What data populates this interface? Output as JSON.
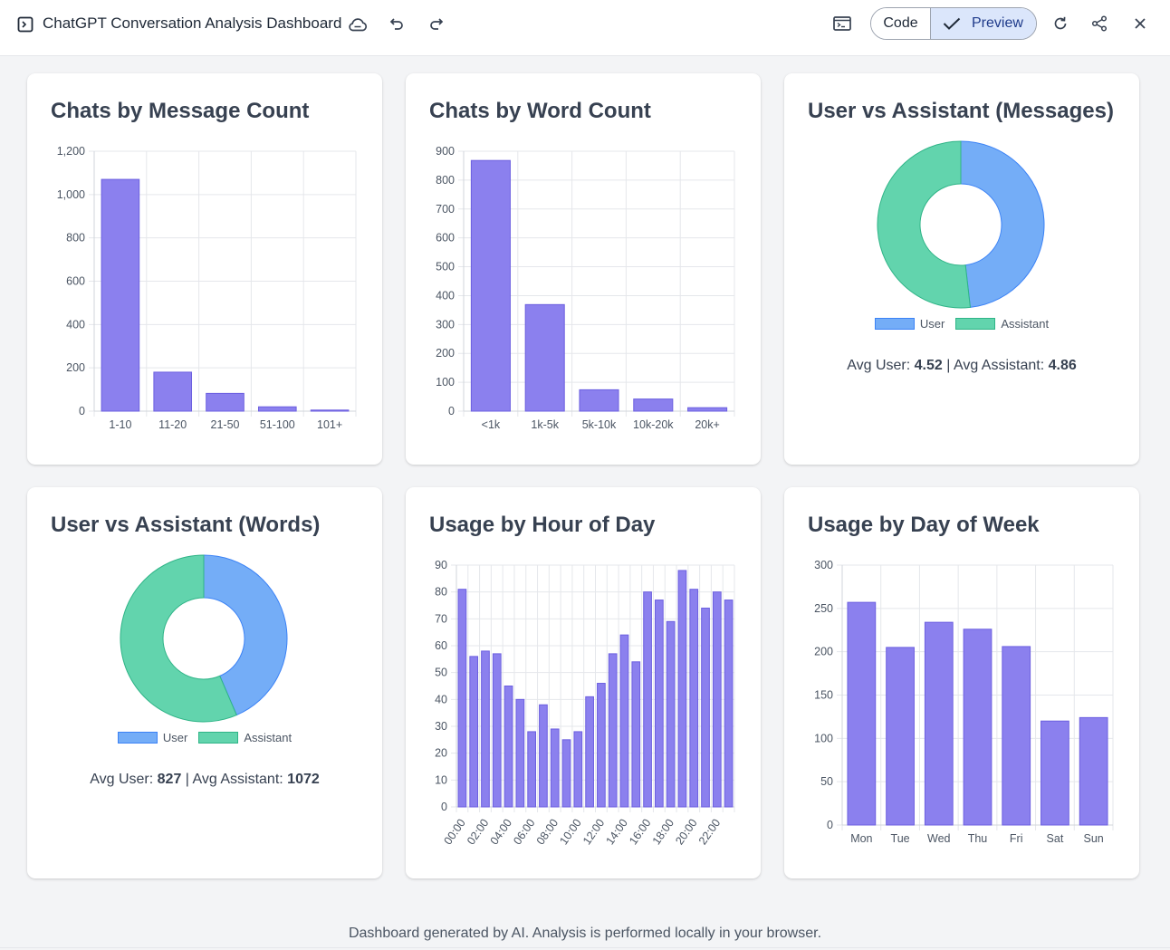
{
  "window": {
    "title": "ChatGPT Conversation Analysis Dashboard"
  },
  "toolbar": {
    "code_label": "Code",
    "preview_label": "Preview",
    "icons": [
      "panel-icon",
      "cloud-save-icon",
      "undo-icon",
      "redo-icon",
      "terminal-icon",
      "refresh-icon",
      "share-icon",
      "close-icon"
    ]
  },
  "colors": {
    "bar_fill": "#8b80ee",
    "bar_stroke": "#6c5fe0",
    "user": "#74adf7",
    "user_stroke": "#3b82f6",
    "assistant": "#62d4ad",
    "assistant_stroke": "#2fb487",
    "preview_bg": "#dbe6fb"
  },
  "cards": {
    "message_count": {
      "title": "Chats by Message Count"
    },
    "word_count": {
      "title": "Chats by Word Count"
    },
    "ua_messages": {
      "title": "User vs Assistant (Messages)",
      "legend_user": "User",
      "legend_assistant": "Assistant",
      "avg_user_label": "Avg User:",
      "avg_user_value": "4.52",
      "separator": "|",
      "avg_assistant_label": "Avg Assistant:",
      "avg_assistant_value": "4.86"
    },
    "ua_words": {
      "title": "User vs Assistant (Words)",
      "legend_user": "User",
      "legend_assistant": "Assistant",
      "avg_user_label": "Avg User:",
      "avg_user_value": "827",
      "separator": "|",
      "avg_assistant_label": "Avg Assistant:",
      "avg_assistant_value": "1072"
    },
    "hour_of_day": {
      "title": "Usage by Hour of Day"
    },
    "day_of_week": {
      "title": "Usage by Day of Week"
    }
  },
  "chart_data": [
    {
      "id": "message_count",
      "type": "bar",
      "title": "Chats by Message Count",
      "categories": [
        "1-10",
        "11-20",
        "21-50",
        "51-100",
        "101+"
      ],
      "values": [
        1070,
        180,
        82,
        20,
        5
      ],
      "ylim": [
        0,
        1200
      ],
      "yticks": [
        0,
        200,
        400,
        600,
        800,
        1000,
        1200
      ],
      "ytick_labels": [
        "0",
        "200",
        "400",
        "600",
        "800",
        "1,000",
        "1,200"
      ]
    },
    {
      "id": "word_count",
      "type": "bar",
      "title": "Chats by Word Count",
      "categories": [
        "<1k",
        "1k-5k",
        "5k-10k",
        "10k-20k",
        "20k+"
      ],
      "values": [
        868,
        369,
        74,
        42,
        12
      ],
      "ylim": [
        0,
        900
      ],
      "yticks": [
        0,
        100,
        200,
        300,
        400,
        500,
        600,
        700,
        800,
        900
      ],
      "ytick_labels": [
        "0",
        "100",
        "200",
        "300",
        "400",
        "500",
        "600",
        "700",
        "800",
        "900"
      ]
    },
    {
      "id": "ua_messages",
      "type": "pie",
      "title": "User vs Assistant (Messages)",
      "labels": [
        "User",
        "Assistant"
      ],
      "values": [
        4.52,
        4.86
      ]
    },
    {
      "id": "ua_words",
      "type": "pie",
      "title": "User vs Assistant (Words)",
      "labels": [
        "User",
        "Assistant"
      ],
      "values": [
        827,
        1072
      ]
    },
    {
      "id": "hour_of_day",
      "type": "bar",
      "title": "Usage by Hour of Day",
      "categories": [
        "00:00",
        "01:00",
        "02:00",
        "03:00",
        "04:00",
        "05:00",
        "06:00",
        "07:00",
        "08:00",
        "09:00",
        "10:00",
        "11:00",
        "12:00",
        "13:00",
        "14:00",
        "15:00",
        "16:00",
        "17:00",
        "18:00",
        "19:00",
        "20:00",
        "21:00",
        "22:00",
        "23:00"
      ],
      "shown_tick_labels": [
        "00:00",
        "02:00",
        "04:00",
        "06:00",
        "08:00",
        "10:00",
        "12:00",
        "14:00",
        "16:00",
        "18:00",
        "20:00",
        "22:00"
      ],
      "values": [
        81,
        56,
        58,
        57,
        45,
        40,
        28,
        38,
        29,
        25,
        28,
        41,
        46,
        57,
        64,
        54,
        80,
        77,
        69,
        88,
        81,
        74,
        80,
        77
      ],
      "ylim": [
        0,
        90
      ],
      "yticks": [
        0,
        10,
        20,
        30,
        40,
        50,
        60,
        70,
        80,
        90
      ],
      "ytick_labels": [
        "0",
        "10",
        "20",
        "30",
        "40",
        "50",
        "60",
        "70",
        "80",
        "90"
      ]
    },
    {
      "id": "day_of_week",
      "type": "bar",
      "title": "Usage by Day of Week",
      "categories": [
        "Mon",
        "Tue",
        "Wed",
        "Thu",
        "Fri",
        "Sat",
        "Sun"
      ],
      "values": [
        257,
        205,
        234,
        226,
        206,
        120,
        124
      ],
      "ylim": [
        0,
        300
      ],
      "yticks": [
        0,
        50,
        100,
        150,
        200,
        250,
        300
      ],
      "ytick_labels": [
        "0",
        "50",
        "100",
        "150",
        "200",
        "250",
        "300"
      ]
    }
  ],
  "footer": {
    "text": "Dashboard generated by AI. Analysis is performed locally in your browser."
  }
}
